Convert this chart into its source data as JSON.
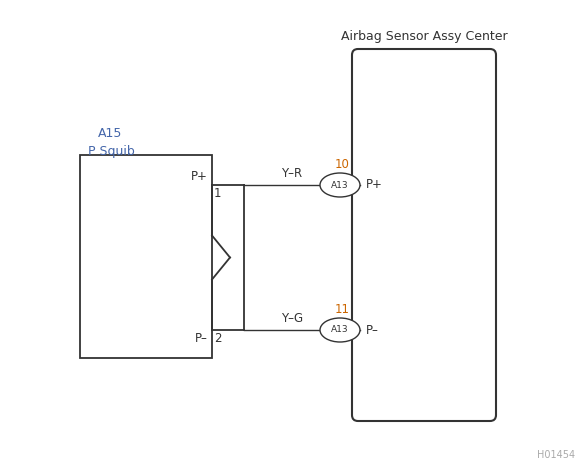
{
  "bg_color": "#ffffff",
  "line_color": "#333333",
  "orange_color": "#cc6600",
  "blue_color": "#4466aa",
  "label_color": "#333333",
  "component_a15_label1": "A15",
  "component_a15_label2": "P Squib",
  "component_airbag_label": "Airbag Sensor Assy Center",
  "connector_pin_p_plus_label": "P+",
  "connector_pin_p_minus_label": "P–",
  "connector_pin_1_label": "1",
  "connector_pin_2_label": "2",
  "wire1_label": "Y–R",
  "wire2_label": "Y–G",
  "circle1_label": "A13",
  "circle2_label": "A13",
  "pin_num1": "10",
  "pin_num2": "11",
  "airbag_pin_plus": "P+",
  "airbag_pin_minus": "P–",
  "watermark": "H01454",
  "figsize": [
    5.85,
    4.71
  ],
  "dpi": 100
}
